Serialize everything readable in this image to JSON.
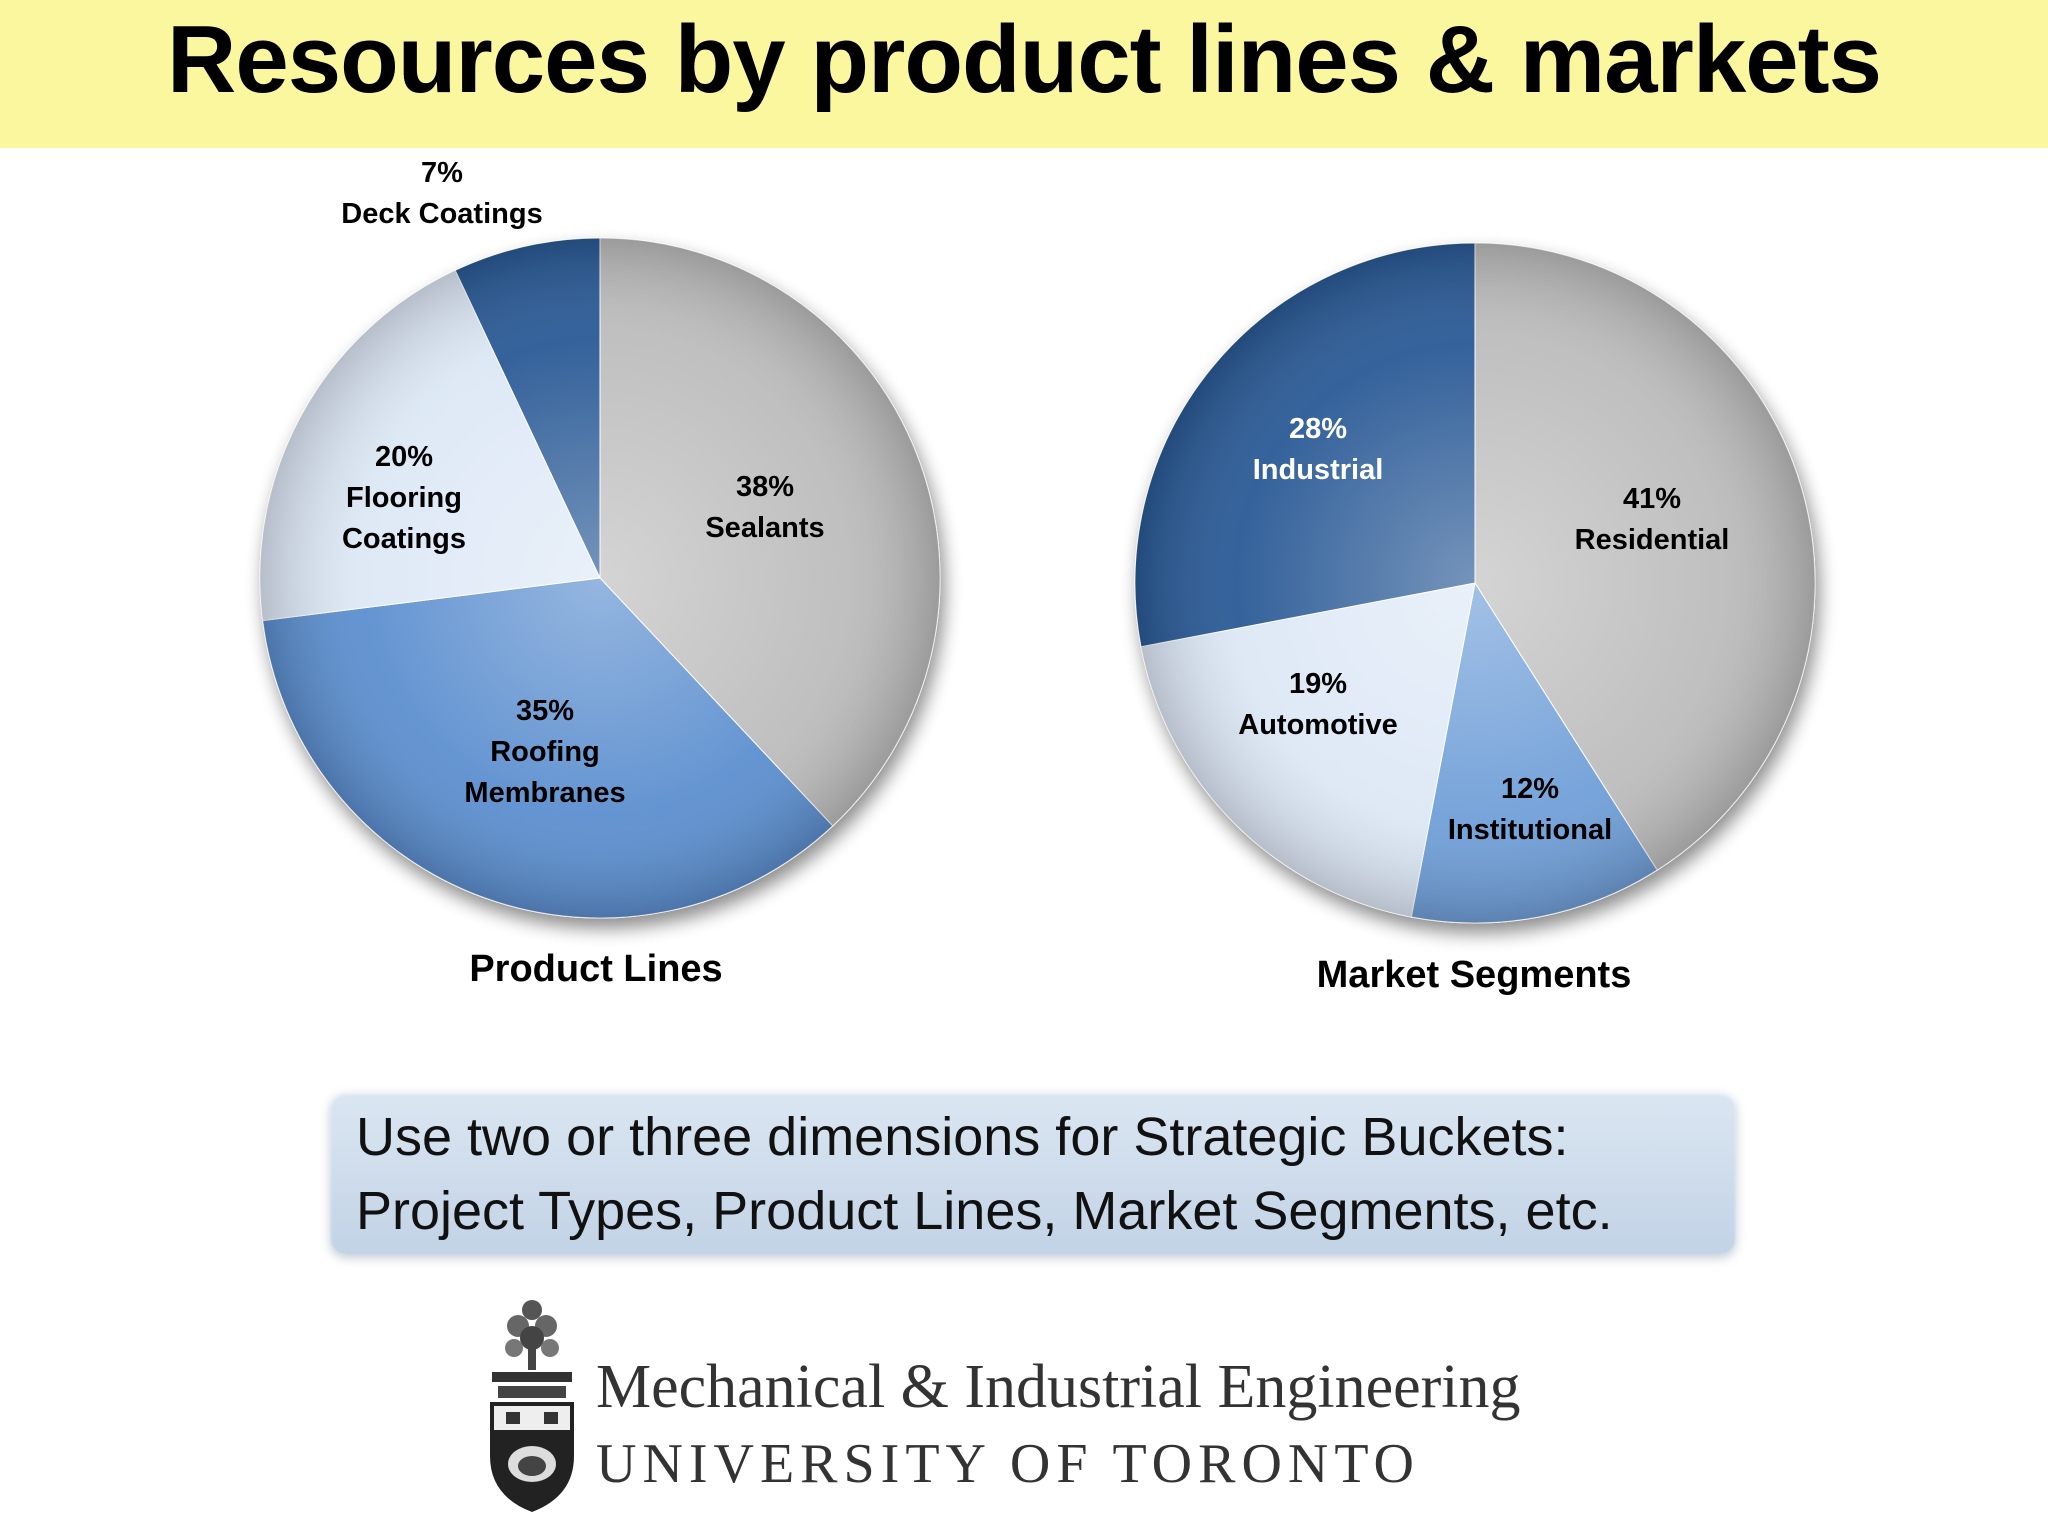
{
  "page": {
    "title": "Resources by product lines & markets",
    "title_banner_color": "#fbf79f"
  },
  "chart_data": [
    {
      "type": "pie",
      "title": "Product Lines",
      "slices": [
        {
          "label": "Sealants",
          "value": 38,
          "text": "38%",
          "color": "#bdbdbd"
        },
        {
          "label": "Roofing Membranes",
          "value": 35,
          "text": "35%",
          "color": "#5b8fcf"
        },
        {
          "label": "Flooring Coatings",
          "value": 20,
          "text": "20%",
          "color": "#dde8f6"
        },
        {
          "label": "Deck Coatings",
          "value": 7,
          "text": "7%",
          "color": "#2a5a96"
        }
      ]
    },
    {
      "type": "pie",
      "title": "Market Segments",
      "slices": [
        {
          "label": "Residential",
          "value": 41,
          "text": "41%",
          "color": "#bdbdbd"
        },
        {
          "label": "Institutional",
          "value": 12,
          "text": "12%",
          "color": "#6f9fd8"
        },
        {
          "label": "Automotive",
          "value": 19,
          "text": "19%",
          "color": "#dde8f6"
        },
        {
          "label": "Industrial",
          "value": 28,
          "text": "28%",
          "color": "#2a5a96"
        }
      ]
    }
  ],
  "callout": {
    "line1": "Use two or three dimensions for Strategic Buckets:",
    "line2": "Project Types, Product Lines, Market Segments, etc."
  },
  "logo": {
    "department": "Mechanical & Industrial Engineering",
    "university": "UNIVERSITY OF TORONTO"
  }
}
